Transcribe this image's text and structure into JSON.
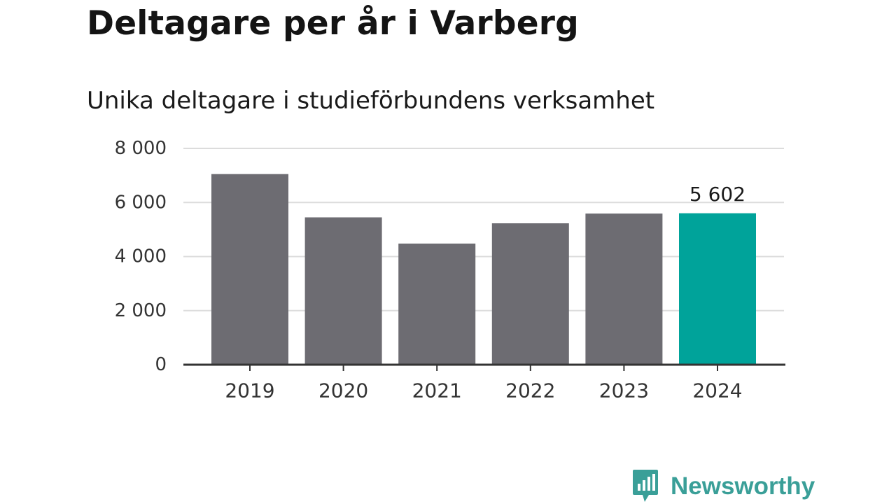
{
  "chart_data": {
    "type": "bar",
    "title": "Deltagare per år i Varberg",
    "subtitle": "Unika deltagare i studieförbundens verksamhet",
    "categories": [
      "2019",
      "2020",
      "2021",
      "2022",
      "2023",
      "2024"
    ],
    "values": [
      7050,
      5450,
      4480,
      5230,
      5590,
      5602
    ],
    "value_label": {
      "index": 5,
      "text": "5 602"
    },
    "ylim": [
      0,
      8000
    ],
    "yticks": [
      0,
      2000,
      4000,
      6000,
      8000
    ],
    "ytick_labels": [
      "0",
      "2 000",
      "4 000",
      "6 000",
      "8 000"
    ],
    "xlabel": "",
    "ylabel": "",
    "grid": true,
    "legend": "none",
    "colors": {
      "bar": "#6d6c72",
      "highlight_bar": "#00a39a",
      "highlight_index": 5
    }
  },
  "brand": {
    "name": "Newsworthy",
    "icon": "newsworthy-bar-chart-icon",
    "color": "#3a9f98"
  }
}
